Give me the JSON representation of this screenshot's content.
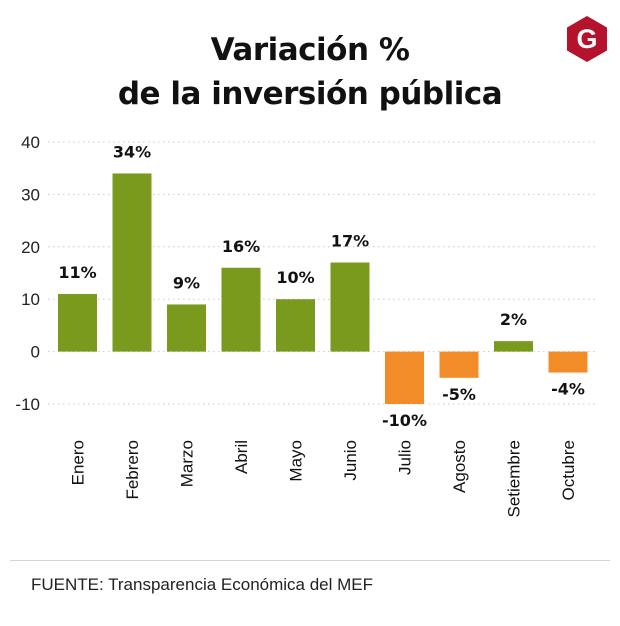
{
  "header": {
    "title_line1": "Variación %",
    "title_line2": "de la inversión pública"
  },
  "logo": {
    "letter": "G",
    "color": "#b5132b"
  },
  "chart_data": {
    "type": "bar",
    "title": "Variación % de la inversión pública",
    "categories": [
      "Enero",
      "Febrero",
      "Marzo",
      "Abril",
      "Mayo",
      "Junio",
      "Julio",
      "Agosto",
      "Setiembre",
      "Octubre"
    ],
    "values": [
      11,
      34,
      9,
      16,
      10,
      17,
      -10,
      -5,
      2,
      -4
    ],
    "value_labels": [
      "11%",
      "34%",
      "9%",
      "16%",
      "10%",
      "17%",
      "-10%",
      "-5%",
      "2%",
      "-4%"
    ],
    "yticks": [
      40,
      30,
      20,
      10,
      0,
      -10
    ],
    "ylim": [
      -10,
      40
    ],
    "grid": true,
    "colors": {
      "positive": "#7a9a1e",
      "negative": "#f28c28",
      "grid": "#c8c8c8"
    }
  },
  "footer": {
    "source": "FUENTE: Transparencia Económica del MEF"
  }
}
